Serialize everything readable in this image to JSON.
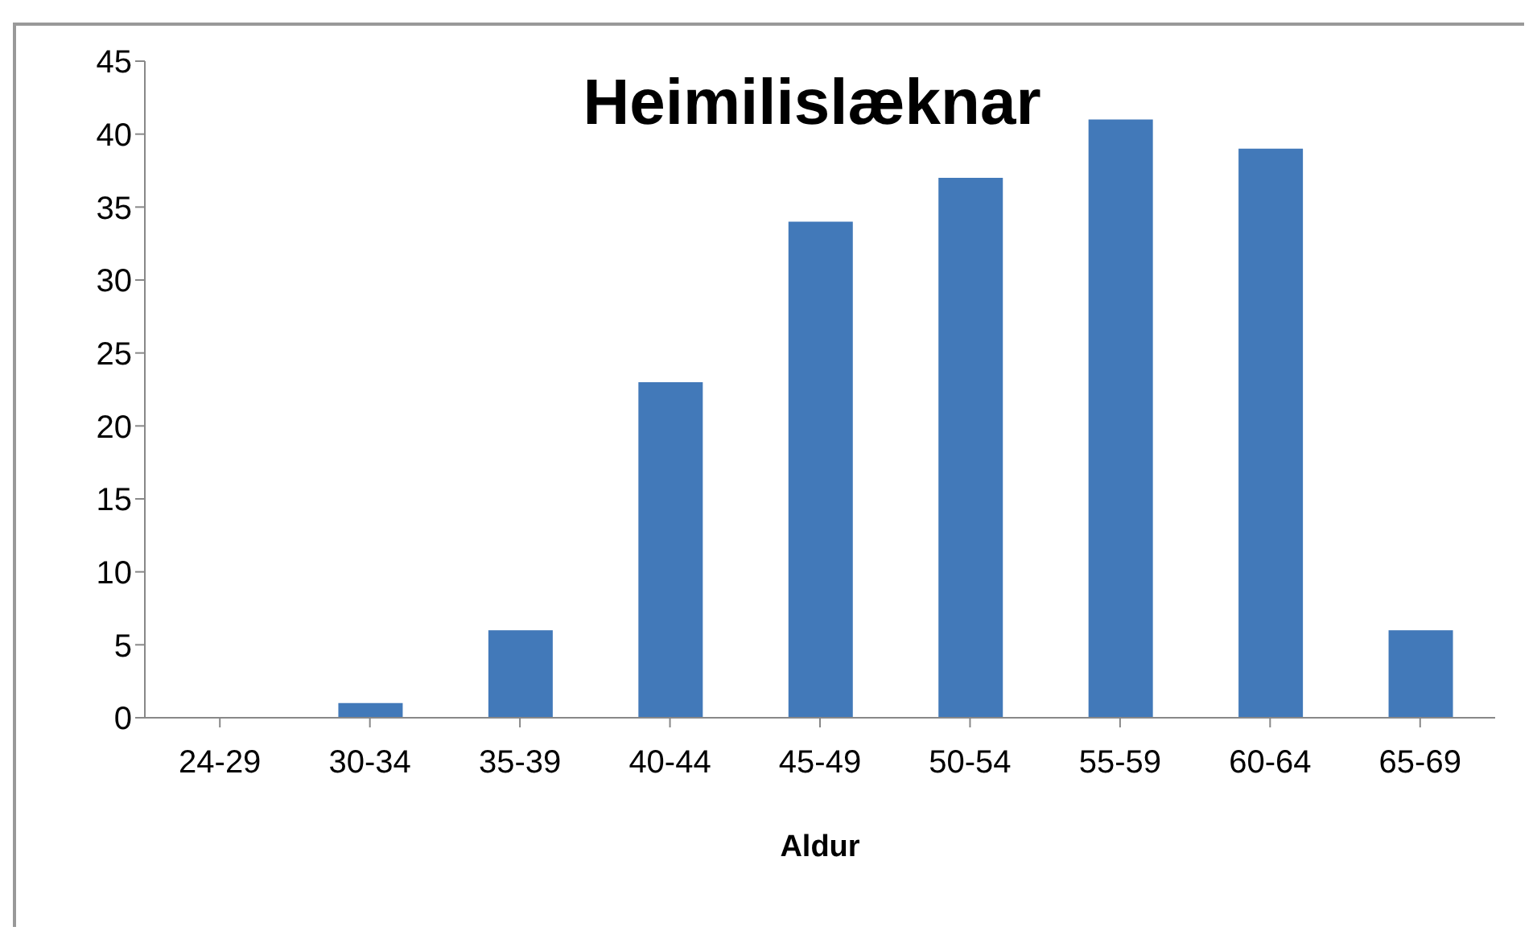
{
  "chart_data": {
    "type": "bar",
    "title": "Heimilislæknar",
    "xlabel": "Aldur",
    "categories": [
      "24-29",
      "30-34",
      "35-39",
      "40-44",
      "45-49",
      "50-54",
      "55-59",
      "60-64",
      "65-69"
    ],
    "values": [
      0,
      1,
      6,
      23,
      34,
      37,
      41,
      39,
      6
    ],
    "color": "#4279b9",
    "ylim": [
      0,
      45
    ],
    "yticks": [
      0,
      5,
      10,
      15,
      20,
      25,
      30,
      35,
      40,
      45
    ],
    "grid": false,
    "legend": false
  }
}
